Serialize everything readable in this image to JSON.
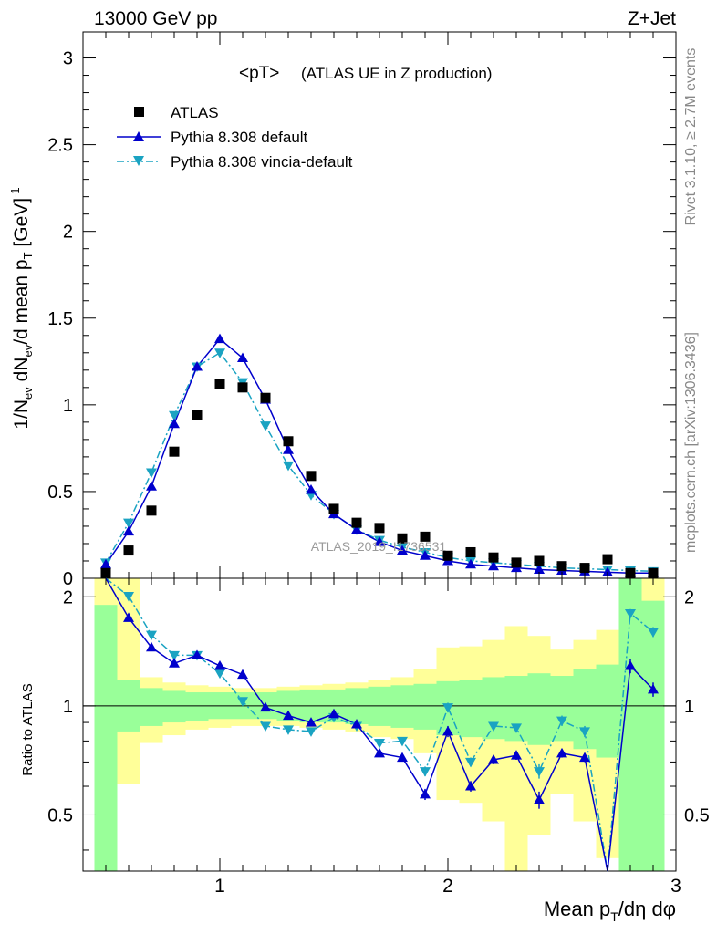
{
  "header": {
    "left": "13000 GeV pp",
    "right": "Z+Jet"
  },
  "side": {
    "top": "Rivet 3.1.10, ≥ 2.7M events",
    "bottom": "mcplots.cern.ch [arXiv:1306.3436]"
  },
  "chart_data": {
    "type": "scatter",
    "title": "<pT>",
    "subtitle": "(ATLAS UE in Z production)",
    "watermark": "ATLAS_2019_I1736531",
    "xlabel": "Mean p_T/dη dφ",
    "ylabel": "1/N_ev dN_ev/d mean p_T [GeV]^-1",
    "ratio_ylabel": "Ratio to ATLAS",
    "xlim": [
      0.4,
      3.0
    ],
    "ylim": [
      0,
      3.15
    ],
    "ratio_ylim": [
      0.35,
      2.25
    ],
    "xticks": [
      "1",
      "2",
      "3"
    ],
    "yticks": [
      "0",
      "0.5",
      "1",
      "1.5",
      "2",
      "2.5",
      "3"
    ],
    "ratio_yticks": [
      "0.5",
      "1",
      "2"
    ],
    "legend": {
      "position": "top-left",
      "entries": [
        "ATLAS",
        "Pythia 8.308 default",
        "Pythia 8.308 vincia-default"
      ]
    },
    "colors": {
      "data": "#000000",
      "default": "#0000cc",
      "vincia": "#1aa3c2",
      "band_inner": "#99ff99",
      "band_outer": "#ffff99"
    },
    "x": [
      0.5,
      0.6,
      0.7,
      0.8,
      0.9,
      1.0,
      1.1,
      1.2,
      1.3,
      1.4,
      1.5,
      1.6,
      1.7,
      1.8,
      1.9,
      2.0,
      2.1,
      2.2,
      2.3,
      2.4,
      2.5,
      2.6,
      2.7,
      2.8,
      2.9
    ],
    "series": [
      {
        "name": "ATLAS",
        "values": [
          0.03,
          0.16,
          0.39,
          0.73,
          0.94,
          1.12,
          1.1,
          1.04,
          0.79,
          0.59,
          0.4,
          0.32,
          0.29,
          0.23,
          0.24,
          0.13,
          0.15,
          0.12,
          0.09,
          0.1,
          0.07,
          0.06,
          0.11,
          0.03,
          0.03
        ]
      },
      {
        "name": "Pythia 8.308 default",
        "values": [
          0.08,
          0.27,
          0.53,
          0.89,
          1.22,
          1.38,
          1.27,
          1.03,
          0.74,
          0.51,
          0.37,
          0.28,
          0.21,
          0.16,
          0.13,
          0.1,
          0.08,
          0.07,
          0.06,
          0.05,
          0.045,
          0.04,
          0.035,
          0.03,
          0.03
        ]
      },
      {
        "name": "Pythia 8.308 vincia-default",
        "values": [
          0.09,
          0.32,
          0.61,
          0.94,
          1.22,
          1.3,
          1.13,
          0.88,
          0.65,
          0.48,
          0.37,
          0.28,
          0.22,
          0.18,
          0.15,
          0.12,
          0.1,
          0.09,
          0.08,
          0.07,
          0.06,
          0.055,
          0.05,
          0.045,
          0.04
        ]
      }
    ],
    "ratio_series": [
      {
        "name": "Pythia 8.308 default",
        "values": [
          2.6,
          1.75,
          1.45,
          1.31,
          1.38,
          1.29,
          1.22,
          0.99,
          0.94,
          0.9,
          0.95,
          0.89,
          0.74,
          0.72,
          0.57,
          0.85,
          0.6,
          0.71,
          0.73,
          0.55,
          0.74,
          0.72,
          0.3,
          1.29,
          1.11
        ]
      },
      {
        "name": "Pythia 8.308 vincia-default",
        "values": [
          2.9,
          2.01,
          1.57,
          1.38,
          1.38,
          1.23,
          1.03,
          0.88,
          0.86,
          0.85,
          0.93,
          0.88,
          0.79,
          0.8,
          0.66,
          0.99,
          0.7,
          0.88,
          0.87,
          0.66,
          0.91,
          0.85,
          0.32,
          1.8,
          1.6
        ]
      }
    ],
    "ratio_errors": {
      "default": [
        0,
        0,
        0,
        0,
        0,
        0,
        0,
        0,
        0,
        0,
        0,
        0,
        0,
        0,
        0.02,
        0.03,
        0.02,
        0.02,
        0.02,
        0.03,
        0.02,
        0.02,
        0,
        0.06,
        0.05
      ],
      "vincia": [
        0,
        0,
        0,
        0,
        0,
        0,
        0,
        0,
        0,
        0,
        0,
        0,
        0,
        0,
        0.02,
        0.03,
        0.02,
        0.02,
        0.02,
        0.03,
        0.03,
        0.03,
        0,
        0.05,
        0.05
      ]
    },
    "bands": {
      "edges": [
        0.45,
        0.55,
        0.65,
        0.75,
        0.85,
        0.95,
        1.05,
        1.15,
        1.25,
        1.35,
        1.45,
        1.55,
        1.65,
        1.75,
        1.85,
        1.95,
        2.05,
        2.15,
        2.25,
        2.35,
        2.45,
        2.55,
        2.65,
        2.75,
        2.85,
        2.95
      ],
      "inner_lo": [
        0.35,
        0.85,
        0.88,
        0.9,
        0.91,
        0.92,
        0.92,
        0.92,
        0.91,
        0.9,
        0.9,
        0.89,
        0.88,
        0.87,
        0.86,
        0.83,
        0.82,
        0.81,
        0.8,
        0.78,
        0.8,
        0.76,
        0.72,
        0.35,
        0.35
      ],
      "inner_hi": [
        1.9,
        1.18,
        1.12,
        1.1,
        1.09,
        1.09,
        1.09,
        1.09,
        1.1,
        1.11,
        1.11,
        1.12,
        1.13,
        1.14,
        1.15,
        1.17,
        1.18,
        1.2,
        1.21,
        1.23,
        1.21,
        1.26,
        1.3,
        2.25,
        1.95
      ],
      "outer_lo": [
        0.35,
        0.61,
        0.79,
        0.83,
        0.86,
        0.87,
        0.88,
        0.88,
        0.88,
        0.87,
        0.86,
        0.85,
        0.82,
        0.81,
        0.74,
        0.55,
        0.54,
        0.48,
        0.35,
        0.44,
        0.57,
        0.48,
        0.38,
        0.35,
        0.35
      ],
      "outer_hi": [
        2.25,
        2.25,
        1.2,
        1.16,
        1.14,
        1.13,
        1.12,
        1.12,
        1.13,
        1.14,
        1.15,
        1.16,
        1.18,
        1.2,
        1.26,
        1.45,
        1.46,
        1.52,
        1.66,
        1.56,
        1.43,
        1.52,
        1.62,
        2.25,
        2.25
      ]
    }
  }
}
